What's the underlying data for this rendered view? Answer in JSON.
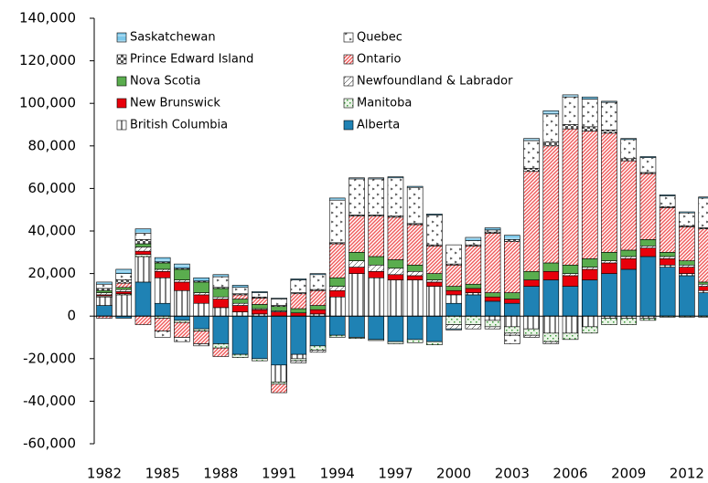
{
  "chart_data": {
    "type": "stacked-bar",
    "categories": [
      "1982",
      null,
      null,
      "1985",
      null,
      null,
      "1988",
      null,
      null,
      "1991",
      null,
      null,
      "1994",
      null,
      null,
      "1997",
      null,
      null,
      "2000",
      null,
      null,
      "2003",
      null,
      null,
      "2006",
      null,
      null,
      "2009",
      null,
      null,
      "2012",
      null
    ],
    "ylim": [
      -60000,
      140000
    ],
    "yticks": [
      {
        "value": -60000,
        "label": "-60,000"
      },
      {
        "value": -40000,
        "label": "-40,000"
      },
      {
        "value": -20000,
        "label": "-20,000"
      },
      0,
      {
        "value": 20000,
        "label": "20,000"
      },
      {
        "value": 40000,
        "label": "40,000"
      },
      {
        "value": 60000,
        "label": "60,000"
      },
      {
        "value": 80000,
        "label": "80,000"
      },
      {
        "value": 100000,
        "label": "100,000"
      },
      {
        "value": 120000,
        "label": "120,000"
      },
      {
        "value": 140000,
        "label": "140,000"
      }
    ],
    "legend": "top-left",
    "series": [
      {
        "name": "Alberta",
        "color": "#1f82b4",
        "pattern": "solid",
        "values": [
          5000,
          -1000,
          16000,
          6000,
          -2000,
          -6000,
          -13000,
          -18000,
          -20000,
          -23000,
          -18000,
          -14000,
          -9000,
          -10000,
          -11000,
          -12000,
          -11000,
          -12000,
          6000,
          10000,
          7000,
          6000,
          14000,
          17000,
          14000,
          17000,
          20000,
          22000,
          28000,
          23000,
          19000,
          11000
        ]
      },
      {
        "name": "British Columbia",
        "color": "#000000",
        "pattern": "vlines",
        "values": [
          4000,
          10000,
          12000,
          12000,
          12000,
          6000,
          4000,
          2000,
          1000,
          -8000,
          -2000,
          1000,
          9000,
          20000,
          18000,
          17000,
          17000,
          14000,
          4000,
          1000,
          -2000,
          -5000,
          -6000,
          -8000,
          -8000,
          -5000,
          -1000,
          -1000,
          -1000,
          1000,
          1000,
          1000
        ]
      },
      {
        "name": "Manitoba",
        "color": "#3a9a3a",
        "pattern": "dots",
        "values": [
          500,
          500,
          1000,
          -1000,
          -1000,
          -1000,
          -2000,
          -1500,
          -1000,
          -1000,
          -1000,
          -2000,
          -1000,
          -500,
          -500,
          -1000,
          -1500,
          -1500,
          -4000,
          -4000,
          -3000,
          -3000,
          -3000,
          -4000,
          -3000,
          -3000,
          -3000,
          -3000,
          -1000,
          -500,
          -500,
          -500
        ]
      },
      {
        "name": "New Brunswick",
        "color": "#e8000b",
        "pattern": "solid",
        "values": [
          500,
          1000,
          1500,
          3000,
          4000,
          4000,
          4000,
          3000,
          2000,
          2000,
          1500,
          2000,
          3000,
          3000,
          3000,
          2500,
          2000,
          2000,
          2000,
          2000,
          2000,
          2000,
          3000,
          4000,
          5000,
          5000,
          5000,
          5000,
          4000,
          3000,
          3000,
          2000
        ]
      },
      {
        "name": "Newfoundland & Labrador",
        "color": "#000000",
        "pattern": "diag",
        "values": [
          1000,
          1000,
          2000,
          1000,
          1000,
          1000,
          1000,
          1000,
          500,
          500,
          -1000,
          -1000,
          2000,
          3000,
          3000,
          3000,
          2000,
          1000,
          -2000,
          -2000,
          -1000,
          -1000,
          -1000,
          -1000,
          1000,
          1000,
          1000,
          1000,
          1000,
          1000,
          1000,
          1000
        ]
      },
      {
        "name": "Nova Scotia",
        "color": "#5aad4e",
        "pattern": "solid",
        "values": [
          1000,
          1000,
          1500,
          3000,
          5000,
          5000,
          4000,
          2000,
          2000,
          2000,
          2000,
          2000,
          4000,
          4000,
          4000,
          4000,
          3000,
          3000,
          2000,
          2000,
          2000,
          3000,
          4000,
          4000,
          4000,
          4000,
          4000,
          3000,
          3000,
          2000,
          2000,
          1000
        ]
      },
      {
        "name": "Ontario",
        "color": "#f05a5a",
        "pattern": "hatch",
        "values": [
          -1000,
          2000,
          -4000,
          -6000,
          -7000,
          -6000,
          -4000,
          2000,
          3000,
          -4000,
          7000,
          7000,
          16000,
          17000,
          19000,
          20000,
          19000,
          13000,
          10000,
          18000,
          28000,
          24000,
          47000,
          55000,
          64000,
          60000,
          56000,
          42000,
          31000,
          21000,
          16000,
          25000
        ]
      },
      {
        "name": "Prince Edward Island",
        "color": "#555555",
        "pattern": "checker",
        "values": [
          1000,
          1500,
          2000,
          500,
          500,
          500,
          500,
          500,
          500,
          500,
          500,
          500,
          500,
          500,
          500,
          500,
          500,
          500,
          500,
          500,
          500,
          1000,
          1500,
          2000,
          2000,
          2000,
          1500,
          1000,
          500,
          500,
          500,
          500
        ]
      },
      {
        "name": "Quebec",
        "color": "#333333",
        "pattern": "sparse",
        "values": [
          2000,
          3000,
          3000,
          -3000,
          -2000,
          -1000,
          5000,
          3000,
          2000,
          3000,
          6000,
          7000,
          20000,
          17000,
          17000,
          18000,
          17000,
          14000,
          9000,
          2000,
          1000,
          -4000,
          13000,
          13000,
          13000,
          13000,
          13000,
          9000,
          7000,
          5000,
          6000,
          14000
        ]
      },
      {
        "name": "Saskatchewan",
        "color": "#7cc8ea",
        "pattern": "hline",
        "values": [
          1000,
          2000,
          2000,
          2000,
          2000,
          1500,
          1000,
          1000,
          500,
          500,
          500,
          500,
          1000,
          500,
          500,
          500,
          500,
          500,
          -500,
          1500,
          1000,
          2000,
          1000,
          1500,
          1000,
          1000,
          500,
          500,
          500,
          500,
          500,
          500
        ]
      }
    ]
  }
}
